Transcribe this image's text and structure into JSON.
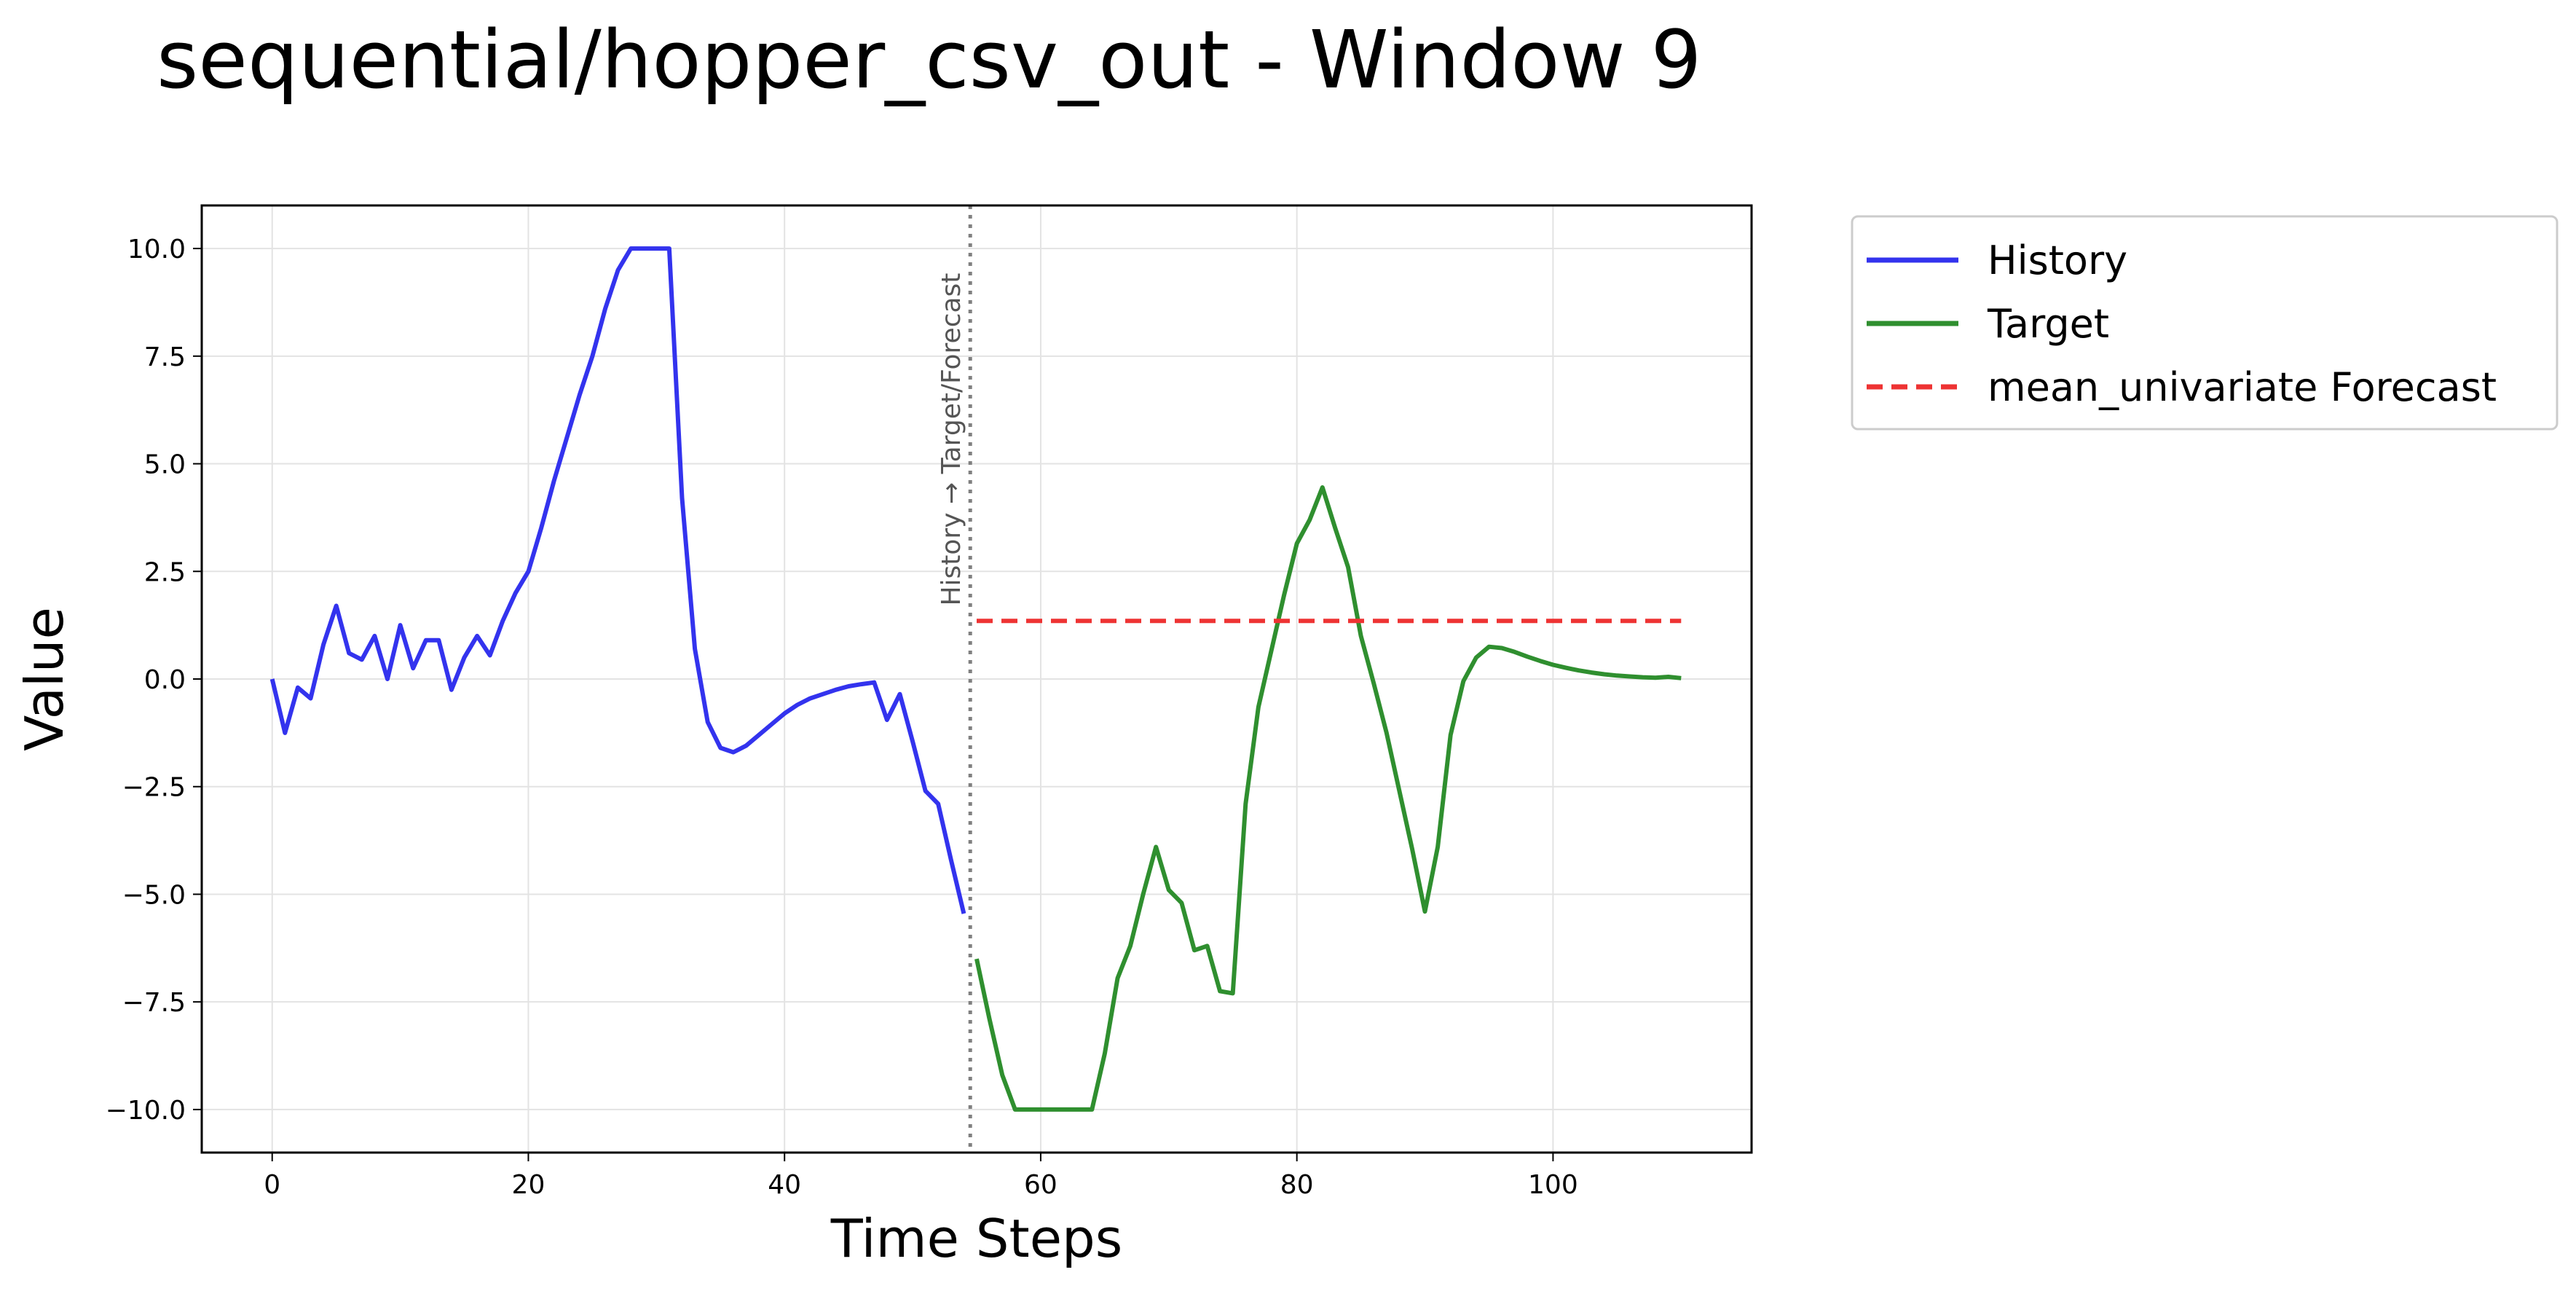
{
  "chart_data": {
    "type": "line",
    "title": "sequential/hopper_csv_out - Window 9",
    "xlabel": "Time Steps",
    "ylabel": "Value",
    "xlim": [
      -5.5,
      115.5
    ],
    "ylim": [
      -11,
      11
    ],
    "xticks": [
      0,
      20,
      40,
      60,
      80,
      100
    ],
    "xtick_labels": [
      "0",
      "20",
      "40",
      "60",
      "80",
      "100"
    ],
    "yticks": [
      10,
      7.5,
      5,
      2.5,
      0,
      -2.5,
      -5,
      -7.5,
      -10
    ],
    "ytick_labels": [
      "10.0",
      "7.5",
      "5.0",
      "2.5",
      "0.0",
      "−2.5",
      "−5.0",
      "−7.5",
      "−10.0"
    ],
    "grid": true,
    "legend_position": "outside-top-right",
    "divider": {
      "x": 54.5,
      "label": "History → Target/Forecast",
      "color": "#808080",
      "style": "dotted"
    },
    "series": [
      {
        "name": "History",
        "color": "#3333ee",
        "style": "solid",
        "x": [
          0,
          1,
          2,
          3,
          4,
          5,
          6,
          7,
          8,
          9,
          10,
          11,
          12,
          13,
          14,
          15,
          16,
          17,
          18,
          19,
          20,
          21,
          22,
          23,
          24,
          25,
          26,
          27,
          28,
          29,
          30,
          31,
          32,
          33,
          34,
          35,
          36,
          37,
          38,
          39,
          40,
          41,
          42,
          43,
          44,
          45,
          46,
          47,
          48,
          49,
          50,
          51,
          52,
          53,
          54
        ],
        "values": [
          0.0,
          -1.25,
          -0.2,
          -0.45,
          0.8,
          1.7,
          0.6,
          0.45,
          1.0,
          0.0,
          1.25,
          0.25,
          0.9,
          0.9,
          -0.25,
          0.5,
          1.0,
          0.55,
          1.35,
          2.0,
          2.5,
          3.5,
          4.6,
          5.6,
          6.6,
          7.5,
          8.6,
          9.5,
          10.0,
          10.0,
          10.0,
          10.0,
          4.2,
          0.7,
          -1.0,
          -1.6,
          -1.7,
          -1.55,
          -1.3,
          -1.05,
          -0.8,
          -0.6,
          -0.45,
          -0.35,
          -0.25,
          -0.17,
          -0.12,
          -0.08,
          -0.95,
          -0.35,
          -1.45,
          -2.6,
          -2.9,
          -4.2,
          -5.45
        ]
      },
      {
        "name": "Target",
        "color": "#2f8f2f",
        "style": "solid",
        "x": [
          55,
          56,
          57,
          58,
          59,
          60,
          61,
          62,
          63,
          64,
          65,
          66,
          67,
          68,
          69,
          70,
          71,
          72,
          73,
          74,
          75,
          76,
          77,
          78,
          79,
          80,
          81,
          82,
          83,
          84,
          85,
          86,
          87,
          88,
          89,
          90,
          91,
          92,
          93,
          94,
          95,
          96,
          97,
          98,
          99,
          100,
          101,
          102,
          103,
          104,
          105,
          106,
          107,
          108,
          109,
          110
        ],
        "values": [
          -6.5,
          -7.9,
          -9.2,
          -10.0,
          -10.0,
          -10.0,
          -10.0,
          -10.0,
          -10.0,
          -10.0,
          -8.7,
          -6.95,
          -6.2,
          -5.0,
          -3.9,
          -4.9,
          -5.2,
          -6.3,
          -6.2,
          -7.25,
          -7.3,
          -2.9,
          -0.65,
          0.65,
          1.95,
          3.15,
          3.7,
          4.45,
          3.5,
          2.6,
          1.0,
          -0.1,
          -1.25,
          -2.6,
          -3.95,
          -5.4,
          -3.9,
          -1.3,
          -0.05,
          0.5,
          0.75,
          0.72,
          0.63,
          0.52,
          0.42,
          0.33,
          0.26,
          0.2,
          0.15,
          0.11,
          0.08,
          0.06,
          0.04,
          0.03,
          0.05,
          0.02
        ]
      },
      {
        "name": "mean_univariate Forecast",
        "color": "#ee3333",
        "style": "dashed",
        "x": [
          55,
          110
        ],
        "values": [
          1.35,
          1.35
        ]
      }
    ]
  }
}
